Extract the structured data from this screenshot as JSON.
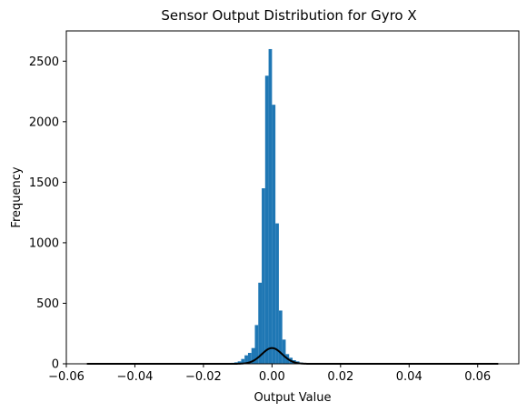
{
  "chart_data": {
    "type": "bar",
    "title": "Sensor Output Distribution for Gyro X",
    "xlabel": "Output Value",
    "ylabel": "Frequency",
    "xlim": [
      -0.06,
      0.072
    ],
    "ylim": [
      0,
      2750
    ],
    "x_ticks": [
      -0.06,
      -0.04,
      -0.02,
      0.0,
      0.02,
      0.04,
      0.06
    ],
    "x_tick_labels": [
      "−0.06",
      "−0.04",
      "−0.02",
      "0.00",
      "0.02",
      "0.04",
      "0.06"
    ],
    "y_ticks": [
      0,
      500,
      1000,
      1500,
      2000,
      2500
    ],
    "y_tick_labels": [
      "0",
      "500",
      "1000",
      "1500",
      "2000",
      "2500"
    ],
    "grid": false,
    "series": [
      {
        "type": "histogram",
        "color": "#1f77b4",
        "bin_width": 0.001,
        "bins": [
          {
            "x0": -0.013,
            "count": 5
          },
          {
            "x0": -0.012,
            "count": 8
          },
          {
            "x0": -0.011,
            "count": 12
          },
          {
            "x0": -0.01,
            "count": 20
          },
          {
            "x0": -0.009,
            "count": 40
          },
          {
            "x0": -0.008,
            "count": 70
          },
          {
            "x0": -0.007,
            "count": 90
          },
          {
            "x0": -0.006,
            "count": 130
          },
          {
            "x0": -0.005,
            "count": 320
          },
          {
            "x0": -0.004,
            "count": 670
          },
          {
            "x0": -0.003,
            "count": 1450
          },
          {
            "x0": -0.002,
            "count": 2380
          },
          {
            "x0": -0.001,
            "count": 2600
          },
          {
            "x0": 0.0,
            "count": 2140
          },
          {
            "x0": 0.001,
            "count": 1160
          },
          {
            "x0": 0.002,
            "count": 440
          },
          {
            "x0": 0.003,
            "count": 200
          },
          {
            "x0": 0.004,
            "count": 80
          },
          {
            "x0": 0.005,
            "count": 50
          },
          {
            "x0": 0.006,
            "count": 30
          },
          {
            "x0": 0.007,
            "count": 20
          },
          {
            "x0": 0.008,
            "count": 10
          },
          {
            "x0": 0.009,
            "count": 6
          },
          {
            "x0": 0.01,
            "count": 4
          },
          {
            "x0": 0.011,
            "count": 3
          },
          {
            "x0": 0.012,
            "count": 2
          }
        ]
      },
      {
        "type": "line",
        "color": "#000000",
        "curve": "normal_pdf",
        "x_range": [
          -0.054,
          0.066
        ],
        "mean": 0.0,
        "sigma": 0.003,
        "peak": 130
      }
    ]
  }
}
